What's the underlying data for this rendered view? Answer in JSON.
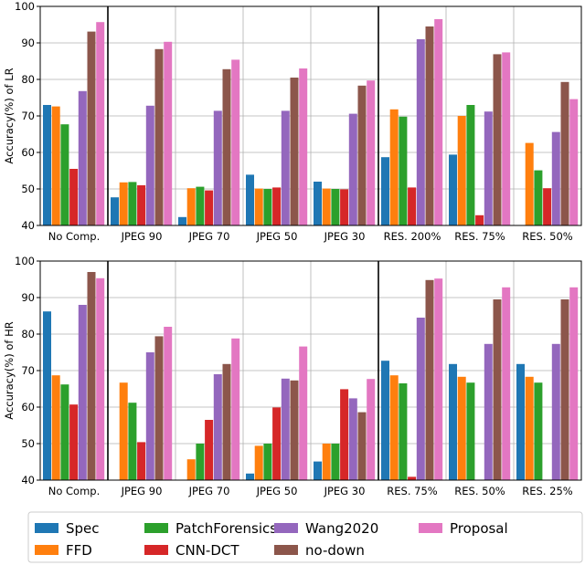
{
  "chart_data": [
    {
      "type": "bar",
      "ylabel": "Accuracy(%) of LR",
      "ylim": [
        40,
        100
      ],
      "yticks": [
        40,
        50,
        60,
        70,
        80,
        90,
        100
      ],
      "grid": true,
      "categories": [
        "No Comp.",
        "JPEG 90",
        "JPEG 70",
        "JPEG 50",
        "JPEG 30",
        "RES. 200%",
        "RES.  75%",
        "RES.  50%"
      ],
      "series": [
        {
          "name": "Spec",
          "color": "#1f77b4",
          "values": [
            73.0,
            47.7,
            42.3,
            53.9,
            52.0,
            58.7,
            59.4,
            40.0
          ]
        },
        {
          "name": "FFD",
          "color": "#ff7f0e",
          "values": [
            72.6,
            51.8,
            50.2,
            50.1,
            50.1,
            71.8,
            70.0,
            62.6
          ]
        },
        {
          "name": "PatchForensics",
          "color": "#2ca02c",
          "values": [
            67.7,
            51.9,
            50.6,
            50.0,
            50.0,
            69.8,
            73.0,
            55.1
          ]
        },
        {
          "name": "CNN-DCT",
          "color": "#d62728",
          "values": [
            55.5,
            51.0,
            49.6,
            50.4,
            49.9,
            50.4,
            42.8,
            50.2
          ]
        },
        {
          "name": "Wang2020",
          "color": "#9467bd",
          "values": [
            76.8,
            72.8,
            71.4,
            71.4,
            70.6,
            91.0,
            71.2,
            65.6
          ]
        },
        {
          "name": "no-down",
          "color": "#8c564b",
          "values": [
            93.1,
            88.3,
            82.8,
            80.5,
            78.3,
            94.5,
            86.9,
            79.3
          ]
        },
        {
          "name": "Proposal",
          "color": "#e377c2",
          "values": [
            95.7,
            90.3,
            85.4,
            83.0,
            79.7,
            96.5,
            87.4,
            74.6
          ]
        }
      ]
    },
    {
      "type": "bar",
      "ylabel": "Accuracy(%) of HR",
      "ylim": [
        40,
        100
      ],
      "yticks": [
        40,
        50,
        60,
        70,
        80,
        90,
        100
      ],
      "grid": true,
      "categories": [
        "No Comp.",
        "JPEG 90",
        "JPEG 70",
        "JPEG 50",
        "JPEG 30",
        "RES.  75%",
        "RES.  50%",
        "RES.  25%"
      ],
      "series": [
        {
          "name": "Spec",
          "color": "#1f77b4",
          "values": [
            86.2,
            40.0,
            40.0,
            41.8,
            45.1,
            72.7,
            71.8,
            71.8
          ]
        },
        {
          "name": "FFD",
          "color": "#ff7f0e",
          "values": [
            68.7,
            66.7,
            45.7,
            49.4,
            50.0,
            68.7,
            68.3,
            68.3
          ]
        },
        {
          "name": "PatchForensics",
          "color": "#2ca02c",
          "values": [
            66.2,
            61.2,
            50.0,
            50.0,
            50.0,
            66.5,
            66.7,
            66.7
          ]
        },
        {
          "name": "CNN-DCT",
          "color": "#d62728",
          "values": [
            60.7,
            50.4,
            56.5,
            59.9,
            64.9,
            40.9,
            40.0,
            40.0
          ]
        },
        {
          "name": "Wang2020",
          "color": "#9467bd",
          "values": [
            88.0,
            75.0,
            69.0,
            67.8,
            62.4,
            84.5,
            77.3,
            77.3
          ]
        },
        {
          "name": "no-down",
          "color": "#8c564b",
          "values": [
            97.0,
            79.4,
            71.8,
            67.3,
            58.6,
            94.8,
            89.5,
            89.5
          ]
        },
        {
          "name": "Proposal",
          "color": "#e377c2",
          "values": [
            95.3,
            82.0,
            78.8,
            76.6,
            67.7,
            95.2,
            92.8,
            92.8
          ]
        }
      ]
    }
  ],
  "legend": {
    "placement": "bottom",
    "entries": [
      "Spec",
      "FFD",
      "PatchForensics",
      "CNN-DCT",
      "Wang2020",
      "no-down",
      "Proposal"
    ]
  }
}
